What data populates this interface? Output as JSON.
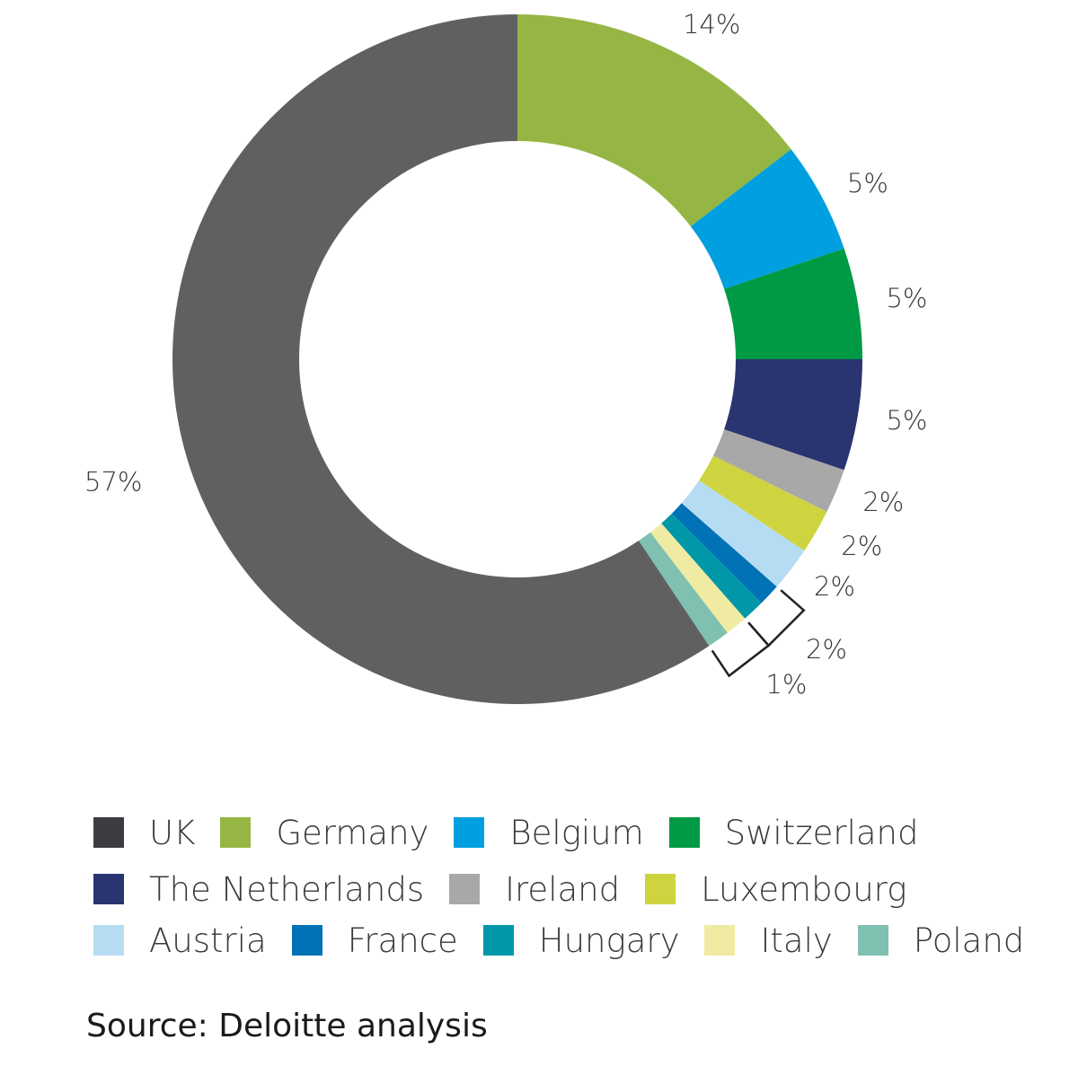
{
  "chart_data": {
    "type": "pie",
    "donut": true,
    "slices": [
      {
        "label": "Germany",
        "value": 14,
        "value_label": "14%",
        "color": "#95b644"
      },
      {
        "label": "Belgium",
        "value": 5,
        "value_label": "5%",
        "color": "#009fdf"
      },
      {
        "label": "Switzerland",
        "value": 5,
        "value_label": "5%",
        "color": "#009a44"
      },
      {
        "label": "The Netherlands",
        "value": 5,
        "value_label": "5%",
        "color": "#2a3470"
      },
      {
        "label": "Ireland",
        "value": 2,
        "value_label": "2%",
        "color": "#a8a8a8"
      },
      {
        "label": "Luxembourg",
        "value": 2,
        "value_label": "2%",
        "color": "#cdd440"
      },
      {
        "label": "Austria",
        "value": 2,
        "value_label": "2%",
        "color": "#b5dcf3"
      },
      {
        "label": "France",
        "value": 1,
        "value_label": "",
        "color": "#0072b5"
      },
      {
        "label": "Hungary",
        "value": 1,
        "value_label": "",
        "color": "#0097a9"
      },
      {
        "label": "Italy",
        "value": 1,
        "value_label": "",
        "color": "#f0eba2"
      },
      {
        "label": "Poland",
        "value": 1,
        "value_label": "",
        "color": "#80c0b1"
      },
      {
        "label": "UK",
        "value": 57,
        "value_label": "57%",
        "color": "#606060"
      }
    ],
    "group_labels": [
      {
        "members": [
          "France",
          "Hungary"
        ],
        "value_label": "2%"
      },
      {
        "members": [
          "Italy",
          "Poland"
        ],
        "value_label": "1%"
      }
    ],
    "legend": {
      "placement": "bottom",
      "items": [
        {
          "label": "UK",
          "color": "#3c3c41"
        },
        {
          "label": "Germany",
          "color": "#95b644"
        },
        {
          "label": "Belgium",
          "color": "#009fdf"
        },
        {
          "label": "Switzerland",
          "color": "#009a44"
        },
        {
          "label": "The Netherlands",
          "color": "#2a3470"
        },
        {
          "label": "Ireland",
          "color": "#a8a8a8"
        },
        {
          "label": "Luxembourg",
          "color": "#cdd440"
        },
        {
          "label": "Austria",
          "color": "#b5dcf3"
        },
        {
          "label": "France",
          "color": "#0072b5"
        },
        {
          "label": "Hungary",
          "color": "#0097a9"
        },
        {
          "label": "Italy",
          "color": "#f0eba2"
        },
        {
          "label": "Poland",
          "color": "#80c0b1"
        }
      ]
    }
  },
  "source": "Source: Deloitte analysis"
}
